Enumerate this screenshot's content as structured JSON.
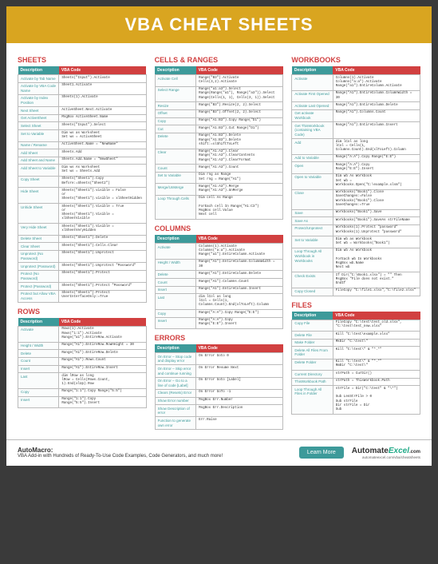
{
  "header": "VBA CHEAT SHEETS",
  "headers": {
    "desc": "Description",
    "code": "VBA Code"
  },
  "sections": {
    "sheets": {
      "title": "SHEETS",
      "rows": [
        [
          "Activate by Tab Name",
          "Sheets(\"Input\").Activate"
        ],
        [
          "Activate by VBA Code Name",
          "Sheet1.Activate"
        ],
        [
          "Activate by Index Position",
          "Sheets(1).Activate"
        ],
        [
          "Next Sheet",
          "ActiveSheet.Next.Activate"
        ],
        [
          "Get ActiveSheet",
          "MsgBox ActiveSheet.Name"
        ],
        [
          "Select Sheet",
          "Sheets(\"Input\").Select"
        ],
        [
          "Set to Variable",
          "Dim ws as Worksheet\nSet ws = ActiveSheet"
        ],
        [
          "Name / Rename",
          "ActiveSheet.Name = \"NewName\""
        ],
        [
          "Add Sheet",
          "Sheets.Add"
        ],
        [
          "Add Sheet and Name",
          "Sheets.Add.Name = \"NewSheet\""
        ],
        [
          "Add Sheet to Variable",
          "Dim ws As Worksheet\nSet ws = Sheets.Add"
        ],
        [
          "Copy Sheet",
          "Sheets(\"Sheet1\").Copy Before:=Sheets(\"Sheet2\")"
        ],
        [
          "Hide Sheet",
          "Sheets(\"Sheet1\").visible = False\nor\nSheets(\"Sheet1\").visible = xlSheetHidden"
        ],
        [
          "Unhide Sheet",
          "Sheets(\"Sheet1\").Visible = True\nor\nSheets(\"Sheet1\").Visible = xlSheetVisible"
        ],
        [
          "Very Hide Sheet",
          "Sheets(\"Sheet1\").Visible = xlSheetVeryHidden"
        ],
        [
          "Delete Sheet",
          "Sheets(\"Sheet1\").Delete"
        ],
        [
          "Clear Sheet",
          "Sheets(\"Sheet1\").Cells.Clear"
        ],
        [
          "Unprotect (No Password)",
          "Sheets(\"Sheet1\").Unprotect"
        ],
        [
          "Unprotect (Password)",
          "Sheets(\"Sheet1\").Unprotect \"Password\""
        ],
        [
          "Protect (No Password)",
          "Sheets(\"Sheet1\").Protect"
        ],
        [
          "Protect (Password)",
          "Sheets(\"Sheet1\").Protect \"Password\""
        ],
        [
          "Protect but Allow VBA Access",
          "Sheets(\"Sheet1\").Protect UserInterfaceOnly:=True"
        ]
      ]
    },
    "rows": {
      "title": "ROWS",
      "rows": [
        [
          "Activate",
          "Rows(1).Activate\nRows(\"1:1\").Activate\nRange(\"a1\").EntireRow.Activate"
        ],
        [
          "Height / Width",
          "Range(\"A1\").EntireRow.RowHeight = 30"
        ],
        [
          "Delete",
          "Range(\"A1\").EntireRow.Delete"
        ],
        [
          "Count",
          "Range(\"A1\").Rows.Count"
        ],
        [
          "Insert",
          "Range(\"A1\").EntireRow.Insert"
        ],
        [
          "Last",
          "dim lRow as long\nlRow = Cells(Rows.Count, 1).End(xlUp).Row"
        ],
        [
          "Copy",
          "Range(\"1:1\").Copy Range(\"5:5\")"
        ],
        [
          "Insert",
          "Range(\"1:1\").Copy\nRange(\"5:5\").Insert"
        ]
      ]
    },
    "cells": {
      "title": "CELLS & RANGES",
      "rows": [
        [
          "Activate Cell",
          "Range(\"B3\").Activate\nCells(3,2).Activate"
        ],
        [
          "Select Range",
          "Range(\"a1:a3\").Select\nRange(Range(\"a1\"), Range(\"a3\")).Select\nRange(Cells(1, 1), Cells(3, 1)).Select"
        ],
        [
          "Resize",
          "Range(\"B3\").Resize(2, 2).Select"
        ],
        [
          "Offset",
          "Range(\"B3\").Offset(2, 2).Select"
        ],
        [
          "Copy",
          "Range(\"A1:B3\").Copy Range(\"D1\")"
        ],
        [
          "Cut",
          "Range(\"A1:B3\").Cut Range(\"D1\")"
        ],
        [
          "Delete",
          "Range(\"A1:B3\").Delete\nRange(\"A1:B3\").Delete shift:=xlShiftToLeft"
        ],
        [
          "Clear",
          "Range(\"A1:A3\").Clear\nRange(\"A1:A3\").ClearContents\nRange(\"A1:A3\").ClearFormat"
        ],
        [
          "Count",
          "Range(\"A1:A3\").Count"
        ],
        [
          "Set to Variable",
          "Dim rng as Range\nSet rng = Range(\"A1\")"
        ],
        [
          "Merge/UnMerge",
          "Range(\"A1:A3\").Merge\nRange(\"A1:A3\").UnMerge"
        ],
        [
          "Loop Through Cells",
          "Dim cell As Range\n\nForEach cell In Range(\"A1:C3\")\n  MsgBox cell.Value\nNext cell"
        ]
      ]
    },
    "columns": {
      "title": "COLUMNS",
      "rows": [
        [
          "Activate",
          "Columns(1).Activate\nColumns(\"a:a\").Activate\nRange(\"a1\").EntireColumn.Activate"
        ],
        [
          "Height / Width",
          "Range(\"A1\").EntireColumn.ColumnWidth = 30"
        ],
        [
          "Delete",
          "Range(\"A1\").EntireColumn.Delete"
        ],
        [
          "Count",
          "Range(\"A1\").Columns.Count"
        ],
        [
          "Insert",
          "Range(\"A1\").EntireColumn.Insert"
        ],
        [
          "Last",
          "dim lCol as long\nlCol = Cells(1, Columns.Count).End(xlToLeft).Column"
        ],
        [
          "Copy",
          "Range(\"A:A\").Copy Range(\"E:E\")"
        ],
        [
          "Insert",
          "Range(\"A:A\").Copy\nRange(\"E:E\").Insert"
        ]
      ]
    },
    "errors": {
      "title": "ERRORS",
      "rows": [
        [
          "On Error – Stop code and display error",
          "On Error Goto 0"
        ],
        [
          "On Error – Skip error and continue running",
          "On Error Resume Next"
        ],
        [
          "On Error – Go to a line of code [Label]",
          "On Error Goto [Label]"
        ],
        [
          "Clears (Resets) Error",
          "On Error GoTo –1"
        ],
        [
          "Show Error number",
          "MsgBox Err.Number"
        ],
        [
          "Show Description of error",
          "MsgBox Err.Description"
        ],
        [
          "Function to generate own error",
          "Err.Raise"
        ]
      ]
    },
    "workbooks": {
      "title": "WORKBOOKS",
      "rows": [
        [
          "Activate",
          "Columns(1).Activate\nColumns(\"a:a\").Activate\nRange(\"a1\").EntireColumn.Activate"
        ],
        [
          "Activate First Opened",
          "Range(\"A1\").EntireColumn.ColumnWidth = 30"
        ],
        [
          "Activate Last Opened",
          "Range(\"A1\").EntireColumn.Delete"
        ],
        [
          "Get activate Workbook",
          "Range(\"A1\").Columns.Count"
        ],
        [
          "Get ThisWorkbook (containing VBA Code)",
          "Range(\"A1\").EntireColumn.Insert"
        ],
        [
          "Add",
          "dim lCol as long\nlCol = Cells(1, Columns.Count).End(xlToLeft).Column"
        ],
        [
          "Add to Variable",
          "Range(\"A:A\").Copy Range(\"E:E\")"
        ],
        [
          "Open",
          "Range(\"A:A\").Copy\nRange(\"E:E\").Insert"
        ],
        [
          "Open to Variable",
          "Dim wb As Workbook\nSet wb = Workbooks.Open(\"C:\\example.xlsm\")"
        ],
        [
          "Close",
          "Workbooks(\"Book1\").Close SaveChanges:=False\nWorkbooks(\"Book1\").Close SaveChanges:=True"
        ],
        [
          "Save",
          "Workbooks(\"Book1\").Save"
        ],
        [
          "Save As",
          "Workbooks(\"Book1\").SaveAs strFileName"
        ],
        [
          "Protect/Unprotect",
          "Workbooks(1).Protect \"password\"\nWorkbooks(1).Unprotect \"password\""
        ],
        [
          "Set to Variable",
          "Dim wb as Workbook\nSet wb = Workbooks(\"Book1\")"
        ],
        [
          "Loop Through All Workbook in Workbooks",
          "Dim wb As Workbook\n\nForEach wb In Workbooks\n  MsgBox wb.Name\nNext wb"
        ],
        [
          "Check Exists",
          "If Dir(\"C:\\Book1.xlsx\") = \"\" Then\nMsgBox \"File does not exist.\"\nEndIf"
        ],
        [
          "Copy Closed",
          "FileCopy \"C:\\file1.xlsx\",\"C:\\file2.xlsx\""
        ]
      ]
    },
    "files": {
      "title": "FILES",
      "rows": [
        [
          "Copy File",
          "FileCopy \"C:\\test\\test_old.xlsx\", \"C:\\test\\test_new.xlsx\""
        ],
        [
          "Delete File",
          "Kill \"C:\\test\\example.xlsx\""
        ],
        [
          "Make Folder",
          "MkDir \"C:\\test\\\""
        ],
        [
          "Delete All Files From Folder",
          "Kill \"C:\\test\\\" & \"*.*\""
        ],
        [
          "Delete Folder",
          "Kill \"C:\\test\\\" & \"*.*\"\nRmDir \"C:\\test\\\""
        ],
        [
          "Current Directory",
          "strPath = CurDir()"
        ],
        [
          "ThisWorkbook Path",
          "strPath = ThisWorkbook.Path"
        ],
        [
          "Loop Through All Files in Folder",
          "strFile = Dir(\"C:\\test\" & \"\\*\")\n\nSub LenStrFile > 0\n  Sub strFile\n  Dir strFile = Dir\nSub"
        ]
      ]
    }
  },
  "footer": {
    "title": "AutoMacro:",
    "sub": "VBA Add-in with Hundreds of Ready-To-Use Code Examples, Code Generators, and much more!",
    "button": "Learn More",
    "logo1": "Automate",
    "logo2": "Excel",
    "logo3": ".com",
    "url": "automateexcel.com/vba/cheatsheets"
  }
}
